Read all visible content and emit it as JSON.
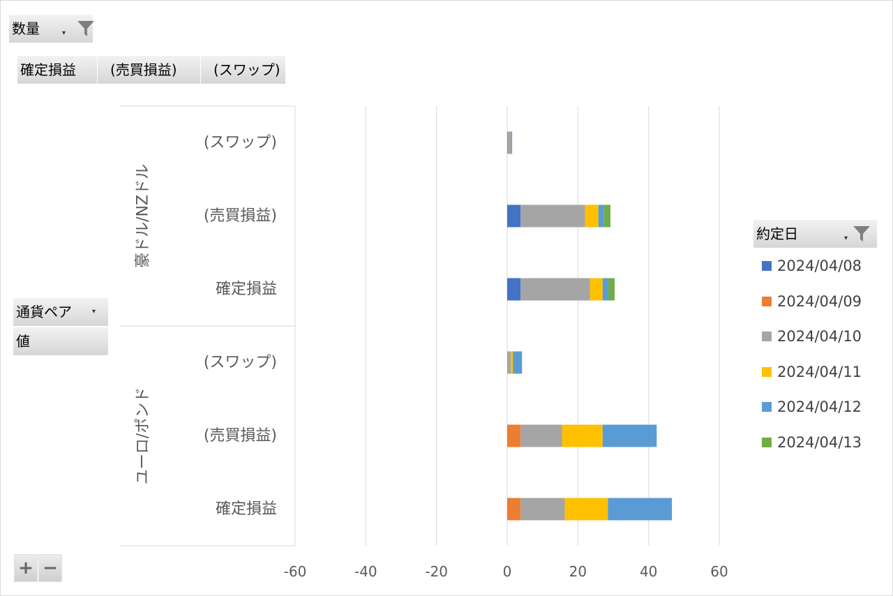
{
  "filter_area": {
    "field": "数量"
  },
  "column_fields": [
    "確定損益",
    "(売買損益)",
    "(スワップ)"
  ],
  "row_area": {
    "field": "通貨ペア",
    "values_label": "値"
  },
  "legend_field": {
    "label": "約定日"
  },
  "zoom_controls": {
    "plus": "+",
    "minus": "−"
  },
  "colors": {
    "2024/04/08": "#4472c4",
    "2024/04/09": "#ed7d31",
    "2024/04/10": "#a5a5a5",
    "2024/04/11": "#ffc000",
    "2024/04/12": "#5b9bd5",
    "2024/04/13": "#70ad47",
    "gridline": "#d9d9d9",
    "separator": "#d9d9d9"
  },
  "chart_data": {
    "type": "bar",
    "orientation": "horizontal",
    "stacked": true,
    "title": "",
    "xlabel": "",
    "ylabel": "",
    "xlim": [
      -60,
      60
    ],
    "x_ticks": [
      "-60",
      "-40",
      "-20",
      "0",
      "20",
      "40",
      "60"
    ],
    "groups": [
      {
        "label": "豪ドル/NZドル",
        "categories": [
          "(スワップ)",
          "(売買損益)",
          "確定損益"
        ]
      },
      {
        "label": "ユーロ/ポンド",
        "categories": [
          "(スワップ)",
          "(売買損益)",
          "確定損益"
        ]
      }
    ],
    "series": [
      {
        "name": "2024/04/08",
        "values": [
          0,
          3.8,
          3.8,
          0,
          0,
          0
        ]
      },
      {
        "name": "2024/04/09",
        "values": [
          0.2,
          0,
          0,
          0,
          3.8,
          3.8
        ]
      },
      {
        "name": "2024/04/10",
        "values": [
          1.0,
          18.2,
          19.6,
          1.0,
          11.7,
          12.5
        ]
      },
      {
        "name": "2024/04/11",
        "values": [
          0,
          3.8,
          3.6,
          0.6,
          11.5,
          12.2
        ]
      },
      {
        "name": "2024/04/12",
        "values": [
          0.2,
          1.6,
          1.6,
          2.6,
          15.3,
          18.1
        ]
      },
      {
        "name": "2024/04/13",
        "values": [
          0,
          1.8,
          1.8,
          0,
          0,
          0
        ]
      }
    ],
    "legend": "right"
  }
}
